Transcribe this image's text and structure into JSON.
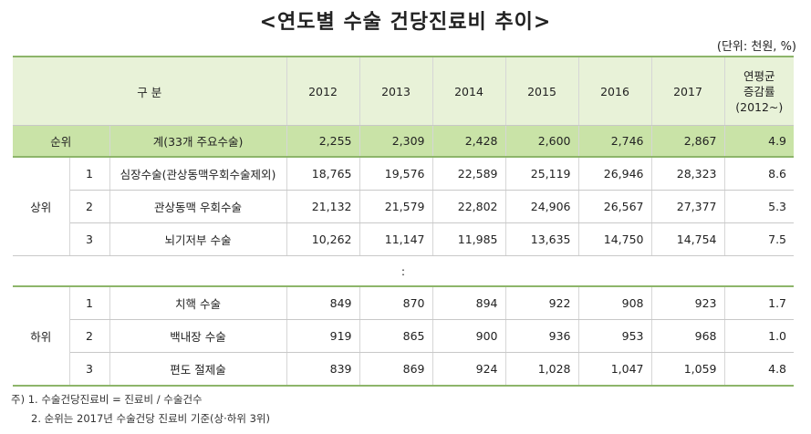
{
  "title": "<연도별 수술 건당진료비 추이>",
  "unit": "(단위: 천원, %)",
  "header": {
    "category": "구 분",
    "years": [
      "2012",
      "2013",
      "2014",
      "2015",
      "2016",
      "2017"
    ],
    "growth_line1": "연평균",
    "growth_line2": "증감률",
    "growth_line3": "(2012~)"
  },
  "total": {
    "rank_label": "순위",
    "name": "계(33개 주요수술)",
    "values": [
      "2,255",
      "2,309",
      "2,428",
      "2,600",
      "2,746",
      "2,867"
    ],
    "growth": "4.9"
  },
  "top": {
    "group_label": "상위",
    "rows": [
      {
        "rank": "1",
        "name": "심장수술(관상동맥우회수술제외)",
        "values": [
          "18,765",
          "19,576",
          "22,589",
          "25,119",
          "26,946",
          "28,323"
        ],
        "growth": "8.6"
      },
      {
        "rank": "2",
        "name": "관상동맥 우회수술",
        "values": [
          "21,132",
          "21,579",
          "22,802",
          "24,906",
          "26,567",
          "27,377"
        ],
        "growth": "5.3"
      },
      {
        "rank": "3",
        "name": "뇌기저부 수술",
        "values": [
          "10,262",
          "11,147",
          "11,985",
          "13,635",
          "14,750",
          "14,754"
        ],
        "growth": "7.5"
      }
    ]
  },
  "separator": ":",
  "bottom": {
    "group_label": "하위",
    "rows": [
      {
        "rank": "1",
        "name": "치핵 수술",
        "values": [
          "849",
          "870",
          "894",
          "922",
          "908",
          "923"
        ],
        "growth": "1.7"
      },
      {
        "rank": "2",
        "name": "백내장 수술",
        "values": [
          "919",
          "865",
          "900",
          "936",
          "953",
          "968"
        ],
        "growth": "1.0"
      },
      {
        "rank": "3",
        "name": "편도 절제술",
        "values": [
          "839",
          "869",
          "924",
          "1,028",
          "1,047",
          "1,059"
        ],
        "growth": "4.8"
      }
    ]
  },
  "notes": [
    "주) 1. 수술건당진료비 = 진료비 / 수술건수",
    "2. 순위는 2017년 수술건당 진료비 기준(상·하위 3위)"
  ]
}
